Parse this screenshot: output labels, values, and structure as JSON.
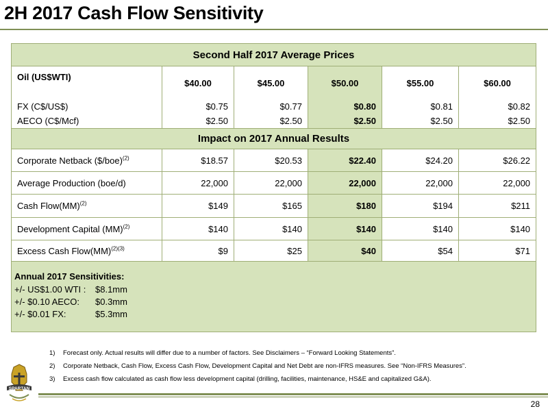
{
  "title": "2H 2017 Cash Flow Sensitivity",
  "prices_header": "Second Half 2017 Average Prices",
  "price_rows": [
    {
      "label": "Oil (US$WTI)",
      "values": [
        "$40.00",
        "$45.00",
        "$50.00",
        "$55.00",
        "$60.00"
      ]
    },
    {
      "label": "FX (C$/US$)",
      "values": [
        "$0.75",
        "$0.77",
        "$0.80",
        "$0.81",
        "$0.82"
      ]
    },
    {
      "label": "AECO (C$/Mcf)",
      "values": [
        "$2.50",
        "$2.50",
        "$2.50",
        "$2.50",
        "$2.50"
      ]
    }
  ],
  "impact_header": "Impact on 2017 Annual Results",
  "impact_rows": [
    {
      "label": "Corporate Netback ($/boe)",
      "sup": "(2)",
      "values": [
        "$18.57",
        "$20.53",
        "$22.40",
        "$24.20",
        "$26.22"
      ]
    },
    {
      "label": "Average Production (boe/d)",
      "sup": "",
      "values": [
        "22,000",
        "22,000",
        "22,000",
        "22,000",
        "22,000"
      ]
    },
    {
      "label": "Cash Flow(MM)",
      "sup": "(2)",
      "values": [
        "$149",
        "$165",
        "$180",
        "$194",
        "$211"
      ]
    },
    {
      "label": "Development Capital (MM)",
      "sup": "(2)",
      "values": [
        "$140",
        "$140",
        "$140",
        "$140",
        "$140"
      ]
    },
    {
      "label": "Excess Cash Flow(MM)",
      "sup": "(2)(3)",
      "values": [
        "$9",
        "$25",
        "$40",
        "$54",
        "$71"
      ]
    }
  ],
  "sensitivities": {
    "title": "Annual 2017 Sensitivities:",
    "lines": [
      {
        "key": "+/- US$1.00 WTI :",
        "value": "$8.1mm"
      },
      {
        "key": "+/- $0.10 AECO:",
        "value": "$0.3mm"
      },
      {
        "key": "+/- $0.01 FX:",
        "value": "$5.3mm"
      }
    ]
  },
  "footnotes": [
    {
      "num": "1)",
      "text": "Forecast only.  Actual results will differ due to a number of factors.  See Disclaimers – “Forward Looking Statements”."
    },
    {
      "num": "2)",
      "text": "Corporate Netback, Cash Flow, Excess Cash Flow, Development Capital and Net Debt are non-IFRS measures.  See “Non-IFRS Measures”."
    },
    {
      "num": "3)",
      "text": "Excess cash flow calculated as cash flow less development capital (drilling, facilities, maintenance, HS&E and capitalized G&A)."
    }
  ],
  "logo_text": "SPARTAN",
  "page_number": "28",
  "colors": {
    "accent": "#7f8f55",
    "highlight": "#d6e3bb",
    "border": "#9fae76"
  }
}
